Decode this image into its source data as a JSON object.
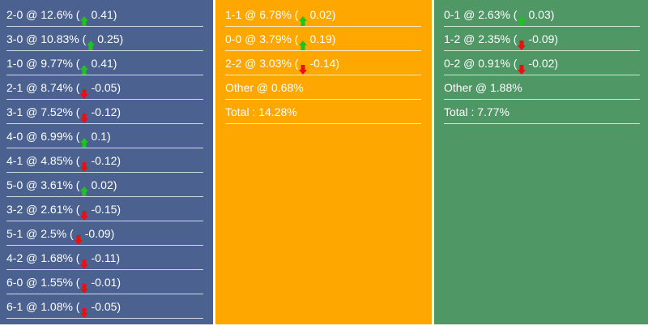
{
  "colors": {
    "col1": "#4b6291",
    "col2": "#fda700",
    "col3": "#4f9866",
    "up": "#1fc21f",
    "down": "#e81010"
  },
  "columns": [
    {
      "rows": [
        {
          "label": "2-0 @ 12.6% (",
          "dir": "up",
          "change": "0.41)"
        },
        {
          "label": "3-0 @ 10.83% (",
          "dir": "up",
          "change": "0.25)"
        },
        {
          "label": "1-0 @ 9.77% (",
          "dir": "up",
          "change": "0.41)"
        },
        {
          "label": "2-1 @ 8.74% (",
          "dir": "down",
          "change": "-0.05)"
        },
        {
          "label": "3-1 @ 7.52% (",
          "dir": "down",
          "change": "-0.12)"
        },
        {
          "label": "4-0 @ 6.99% (",
          "dir": "up",
          "change": "0.1)"
        },
        {
          "label": "4-1 @ 4.85% (",
          "dir": "down",
          "change": "-0.12)"
        },
        {
          "label": "5-0 @ 3.61% (",
          "dir": "up",
          "change": "0.02)"
        },
        {
          "label": "3-2 @ 2.61% (",
          "dir": "down",
          "change": "-0.15)"
        },
        {
          "label": "5-1 @ 2.5% (",
          "dir": "down",
          "change": "-0.09)"
        },
        {
          "label": "4-2 @ 1.68% (",
          "dir": "down",
          "change": "-0.11)"
        },
        {
          "label": "6-0 @ 1.55% (",
          "dir": "down",
          "change": "-0.01)"
        },
        {
          "label": "6-1 @ 1.08% (",
          "dir": "down",
          "change": "-0.05)"
        }
      ]
    },
    {
      "rows": [
        {
          "label": "1-1 @ 6.78% (",
          "dir": "up",
          "change": "0.02)"
        },
        {
          "label": "0-0 @ 3.79% (",
          "dir": "up",
          "change": "0.19)"
        },
        {
          "label": "2-2 @ 3.03% (",
          "dir": "down",
          "change": "-0.14)"
        },
        {
          "label": "Other @ 0.68%"
        },
        {
          "label": "Total : 14.28%"
        }
      ]
    },
    {
      "rows": [
        {
          "label": "0-1 @ 2.63% (",
          "dir": "up",
          "change": "0.03)"
        },
        {
          "label": "1-2 @ 2.35% (",
          "dir": "down",
          "change": "-0.09)"
        },
        {
          "label": "0-2 @ 0.91% (",
          "dir": "down",
          "change": "-0.02)"
        },
        {
          "label": "Other @ 1.88%"
        },
        {
          "label": "Total : 7.77%"
        }
      ]
    }
  ]
}
